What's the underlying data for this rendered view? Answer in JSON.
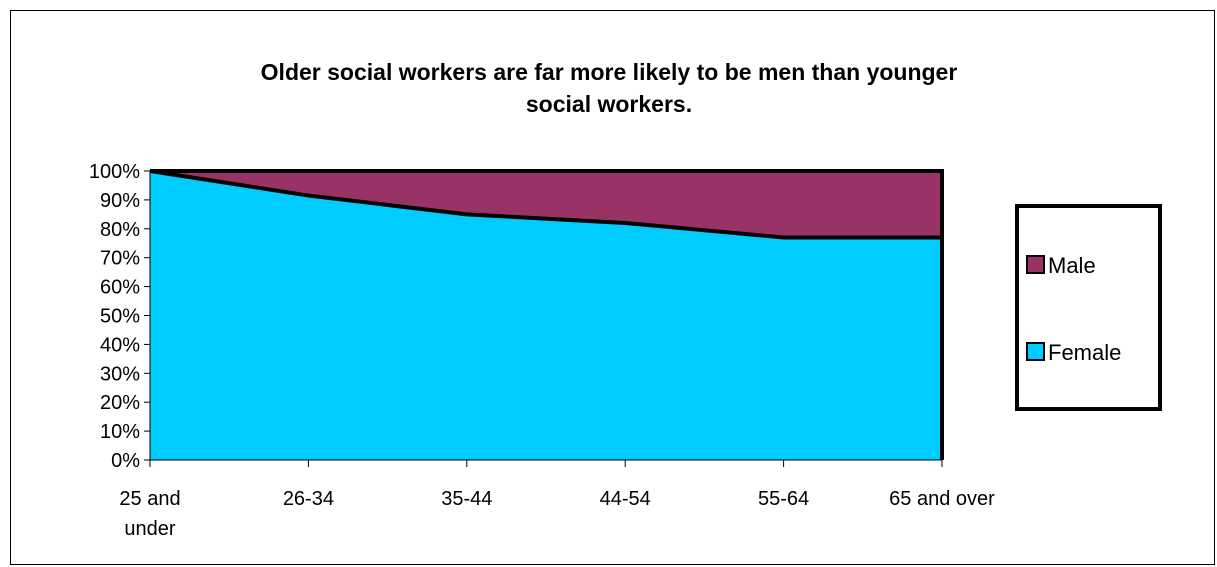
{
  "chart_data": {
    "type": "area",
    "stacked": "percent",
    "title": [
      "Older social workers are far more likely to be men than younger",
      "social workers."
    ],
    "categories": [
      [
        "25 and",
        "under"
      ],
      [
        "26-34"
      ],
      [
        "35-44"
      ],
      [
        "44-54"
      ],
      [
        "55-64"
      ],
      [
        "65 and over"
      ]
    ],
    "y_ticks": [
      "0%",
      "10%",
      "20%",
      "30%",
      "40%",
      "50%",
      "60%",
      "70%",
      "80%",
      "90%",
      "100%"
    ],
    "ylim": [
      0,
      100
    ],
    "grid": false,
    "legend_position": "right",
    "series": [
      {
        "name": "Female",
        "color": "#00CCFF",
        "values": [
          100,
          91.5,
          85,
          82,
          77,
          77
        ]
      },
      {
        "name": "Male",
        "color": "#993366",
        "values": [
          0,
          8.5,
          15,
          18,
          23,
          23
        ]
      }
    ],
    "legend": [
      {
        "name": "Male",
        "color": "#993366"
      },
      {
        "name": "Female",
        "color": "#00CCFF"
      }
    ]
  }
}
